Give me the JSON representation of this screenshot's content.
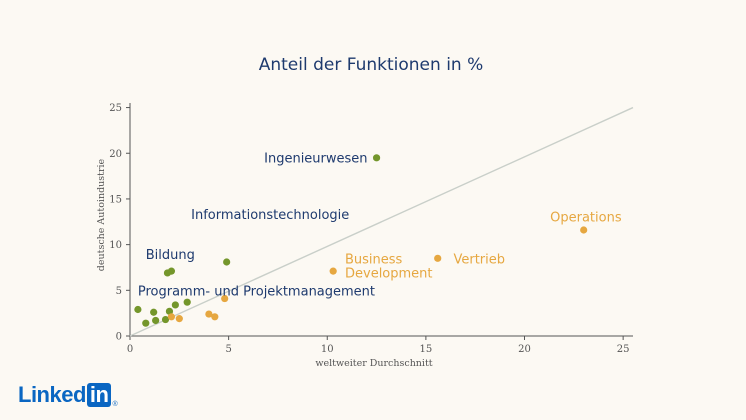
{
  "chart_data": {
    "type": "scatter",
    "title": "Anteil der Funktionen in %",
    "xlabel": "weltweiter Durchschnitt",
    "ylabel": "deutsche Autoindustrie",
    "xlim": [
      0,
      25.5
    ],
    "ylim": [
      0,
      25.5
    ],
    "xticks": [
      0,
      5,
      10,
      15,
      20,
      25
    ],
    "yticks": [
      0,
      5,
      10,
      15,
      20,
      25
    ],
    "grid": false,
    "reference_line": {
      "from": [
        0,
        0
      ],
      "to": [
        25.5,
        25
      ]
    },
    "colors": {
      "green": "#74962b",
      "orange": "#e6a740",
      "title": "#1e3a6e",
      "line": "#c9cfc9"
    },
    "points": [
      {
        "x": 12.5,
        "y": 19.5,
        "color": "green"
      },
      {
        "x": 4.9,
        "y": 8.1,
        "color": "green"
      },
      {
        "x": 2.1,
        "y": 7.1,
        "color": "green"
      },
      {
        "x": 1.9,
        "y": 6.9,
        "color": "green"
      },
      {
        "x": 0.4,
        "y": 2.9,
        "color": "green"
      },
      {
        "x": 0.8,
        "y": 1.4,
        "color": "green"
      },
      {
        "x": 1.2,
        "y": 2.6,
        "color": "green"
      },
      {
        "x": 1.3,
        "y": 1.7,
        "color": "green"
      },
      {
        "x": 1.8,
        "y": 1.8,
        "color": "green"
      },
      {
        "x": 2.0,
        "y": 2.7,
        "color": "green"
      },
      {
        "x": 2.3,
        "y": 3.4,
        "color": "green"
      },
      {
        "x": 2.9,
        "y": 3.7,
        "color": "green"
      },
      {
        "x": 2.1,
        "y": 2.1,
        "color": "orange"
      },
      {
        "x": 2.5,
        "y": 1.9,
        "color": "orange"
      },
      {
        "x": 4.0,
        "y": 2.4,
        "color": "orange"
      },
      {
        "x": 4.3,
        "y": 2.1,
        "color": "orange"
      },
      {
        "x": 4.8,
        "y": 4.1,
        "color": "orange"
      },
      {
        "x": 10.3,
        "y": 7.1,
        "color": "orange"
      },
      {
        "x": 15.6,
        "y": 8.5,
        "color": "orange"
      },
      {
        "x": 23.0,
        "y": 11.6,
        "color": "orange"
      }
    ],
    "annotations": [
      {
        "text": "Ingenieurwesen",
        "x": 6.8,
        "y": 19.5,
        "color": "title",
        "anchor": "start"
      },
      {
        "text": "Informationstechnologie",
        "x": 3.1,
        "y": 13.3,
        "color": "title",
        "anchor": "start"
      },
      {
        "text": "Bildung",
        "x": 0.8,
        "y": 8.9,
        "color": "title",
        "anchor": "start"
      },
      {
        "text": "Programm- und Projektmanagement",
        "x": 0.4,
        "y": 4.9,
        "color": "title",
        "anchor": "start"
      },
      {
        "text": "Business",
        "x": 10.9,
        "y": 8.4,
        "color": "orange",
        "anchor": "start"
      },
      {
        "text": "Development",
        "x": 10.9,
        "y": 6.9,
        "color": "orange",
        "anchor": "start"
      },
      {
        "text": "Vertrieb",
        "x": 16.4,
        "y": 8.4,
        "color": "orange",
        "anchor": "start"
      },
      {
        "text": "Operations",
        "x": 21.3,
        "y": 13.0,
        "color": "orange",
        "anchor": "start"
      }
    ]
  },
  "logo": {
    "text_left": "Linked",
    "text_box": "in",
    "trademark": "®"
  }
}
